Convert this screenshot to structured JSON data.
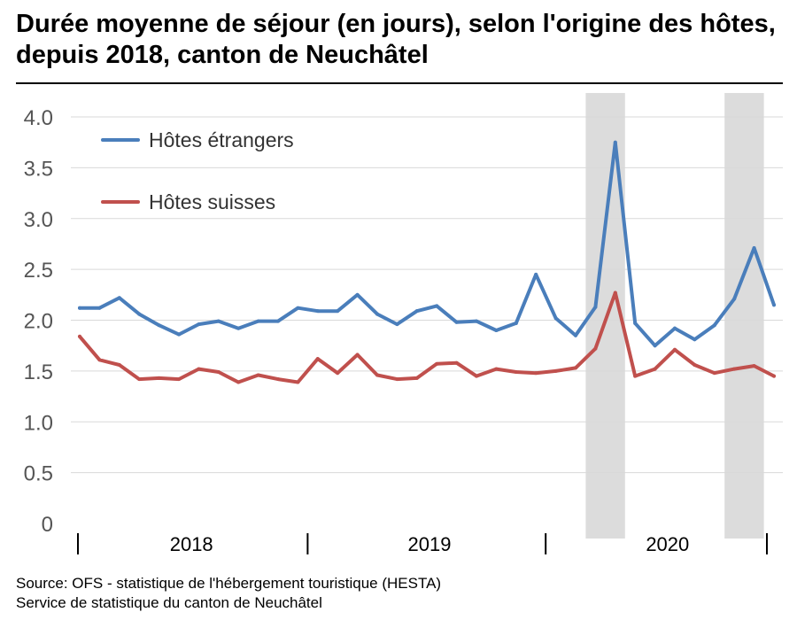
{
  "chart_data": {
    "type": "line",
    "title": "Durée moyenne de séjour (en jours), selon l'origine des hôtes, depuis 2018, canton de Neuchâtel",
    "xlabel": "",
    "ylabel": "",
    "ylim": [
      0,
      4.0
    ],
    "yticks": [
      "0",
      "0.5",
      "1.0",
      "1.5",
      "2.0",
      "2.5",
      "3.0",
      "3.5",
      "4.0"
    ],
    "x": [
      "2018-01",
      "2018-02",
      "2018-03",
      "2018-04",
      "2018-05",
      "2018-06",
      "2018-07",
      "2018-08",
      "2018-09",
      "2018-10",
      "2018-11",
      "2018-12",
      "2019-01",
      "2019-02",
      "2019-03",
      "2019-04",
      "2019-05",
      "2019-06",
      "2019-07",
      "2019-08",
      "2019-09",
      "2019-10",
      "2019-11",
      "2019-12",
      "2020-01",
      "2020-02",
      "2020-03",
      "2020-04",
      "2020-05",
      "2020-06",
      "2020-07",
      "2020-08",
      "2020-09",
      "2020-10",
      "2020-11",
      "2020-12"
    ],
    "year_labels": [
      {
        "label": "2018",
        "center_month": "2018-07"
      },
      {
        "label": "2019",
        "center_month": "2019-07"
      },
      {
        "label": "2020",
        "center_month": "2020-07"
      }
    ],
    "shaded_periods": [
      {
        "from": "2020-03",
        "to": "2020-04"
      },
      {
        "from": "2020-10",
        "to": "2020-11"
      }
    ],
    "grid": true,
    "legend_position": "top-left",
    "series": [
      {
        "name": "Hôtes étrangers",
        "color": "#4a7ebb",
        "values": [
          2.12,
          2.12,
          2.22,
          2.06,
          1.95,
          1.86,
          1.96,
          1.99,
          1.92,
          1.99,
          1.99,
          2.12,
          2.09,
          2.09,
          2.25,
          2.06,
          1.96,
          2.09,
          2.14,
          1.98,
          1.99,
          1.9,
          1.97,
          2.45,
          2.02,
          1.85,
          2.13,
          3.75,
          1.97,
          1.75,
          1.92,
          1.81,
          1.95,
          2.21,
          2.71,
          2.15
        ]
      },
      {
        "name": "Hôtes suisses",
        "color": "#c0504d",
        "values": [
          1.84,
          1.61,
          1.56,
          1.42,
          1.43,
          1.42,
          1.52,
          1.49,
          1.39,
          1.46,
          1.42,
          1.39,
          1.62,
          1.48,
          1.66,
          1.46,
          1.42,
          1.43,
          1.57,
          1.58,
          1.45,
          1.52,
          1.49,
          1.48,
          1.5,
          1.53,
          1.72,
          2.27,
          1.45,
          1.52,
          1.71,
          1.56,
          1.48,
          1.52,
          1.55,
          1.45
        ]
      }
    ]
  },
  "footer": {
    "source": "Source: OFS - statistique de l'hébergement touristique (HESTA)",
    "service": "Service de statistique du canton de Neuchâtel"
  }
}
